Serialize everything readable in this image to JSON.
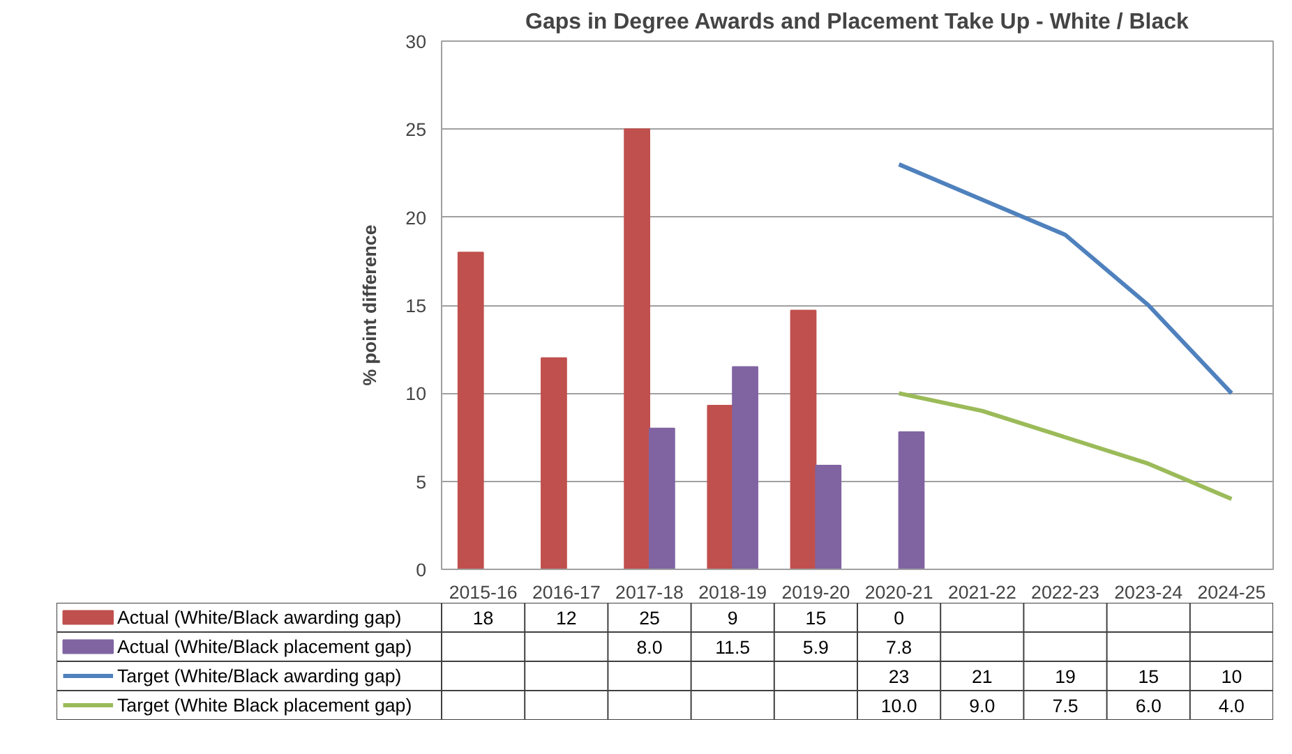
{
  "chart_data": {
    "type": "bar",
    "title": "Gaps in Degree Awards and Placement Take Up - White / Black",
    "ylabel": "% point difference",
    "categories": [
      "2015-16",
      "2016-17",
      "2017-18",
      "2018-19",
      "2019-20",
      "2020-21",
      "2021-22",
      "2022-23",
      "2023-24",
      "2024-25"
    ],
    "series": [
      {
        "name": "Actual (White/Black awarding gap)",
        "color": "#c0504d",
        "values": [
          18,
          12,
          25,
          9.3,
          14.7,
          0,
          null,
          null,
          null,
          null
        ],
        "value_labels": [
          "18",
          "12",
          "25",
          "9",
          "15",
          "0",
          null,
          null,
          null,
          null
        ]
      },
      {
        "name": "Actual (White/Black placement gap)",
        "color": "#8064a2",
        "values": [
          null,
          null,
          8.0,
          11.5,
          5.9,
          7.8,
          null,
          null,
          null,
          null
        ],
        "value_labels": [
          null,
          null,
          "8.0",
          "11.5",
          "5.9",
          "7.8",
          null,
          null,
          null,
          null
        ]
      },
      {
        "name": "Target (White/Black awarding gap)",
        "type": "line",
        "color": "#4f81bd",
        "values": [
          null,
          null,
          null,
          null,
          null,
          23,
          21,
          19,
          15,
          10
        ],
        "value_labels": [
          null,
          null,
          null,
          null,
          null,
          "23",
          "21",
          "19",
          "15",
          "10"
        ]
      },
      {
        "name": "Target (White Black placement gap)",
        "type": "line",
        "color": "#9bbb59",
        "values": [
          null,
          null,
          null,
          null,
          null,
          10.0,
          9.0,
          7.5,
          6.0,
          4.0
        ],
        "value_labels": [
          null,
          null,
          null,
          null,
          null,
          "10.0",
          "9.0",
          "7.5",
          "6.0",
          "4.0"
        ]
      }
    ],
    "ylim": [
      0,
      30
    ],
    "yticks": [
      0,
      5,
      10,
      15,
      20,
      25,
      30
    ],
    "grid": "y",
    "legend": "bottom",
    "marker": "none",
    "line_style": "solid"
  }
}
